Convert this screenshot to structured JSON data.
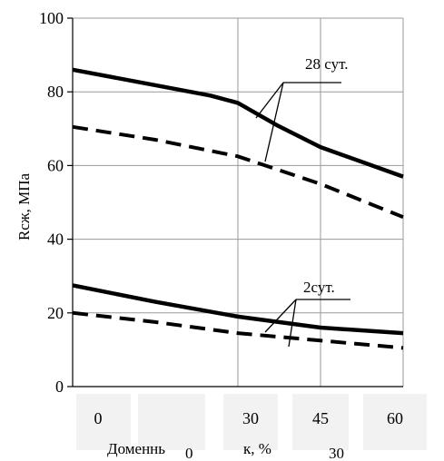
{
  "chart_data": {
    "type": "line",
    "ylabel": "Rсж, МПа",
    "xlabel_parts": [
      "Доменнь",
      "0",
      "к, %",
      "30"
    ],
    "y_ticks": [
      "0",
      "20",
      "40",
      "60",
      "80",
      "100"
    ],
    "x_tick_labels": [
      "0",
      "",
      "30",
      "45",
      "60"
    ],
    "ylim": [
      0,
      100
    ],
    "xlim": [
      0,
      60
    ],
    "grid": true,
    "series": [
      {
        "style": "solid",
        "x": [
          0,
          25,
          30,
          37,
          45,
          60
        ],
        "y": [
          86,
          79,
          77,
          71,
          65,
          57
        ]
      },
      {
        "style": "dashed",
        "x": [
          0,
          15,
          30,
          45,
          60
        ],
        "y": [
          70.5,
          67,
          62.5,
          55,
          46
        ]
      },
      {
        "style": "solid",
        "x": [
          0,
          15,
          30,
          45,
          60
        ],
        "y": [
          27.5,
          23,
          19,
          16,
          14.5
        ]
      },
      {
        "style": "dashed",
        "x": [
          0,
          15,
          30,
          45,
          60
        ],
        "y": [
          20,
          17.5,
          14.5,
          12.5,
          10.5
        ]
      }
    ],
    "annotations": [
      {
        "text": "28 сут."
      },
      {
        "text": "2сут."
      }
    ]
  }
}
